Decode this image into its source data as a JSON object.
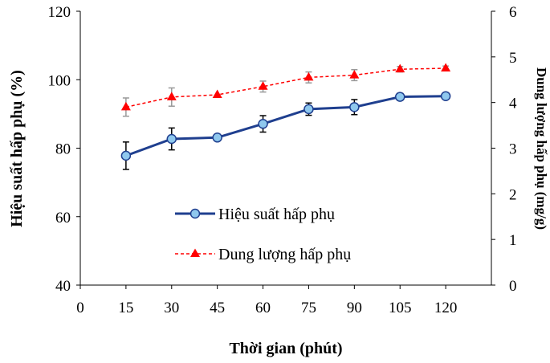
{
  "chart_data": {
    "type": "line",
    "xlabel": "Thời gian (phút)",
    "ylabel_left": "Hiệu suất hấp phụ (%)",
    "ylabel_right": "Dung lượng hấp phụ (mg/g)",
    "xlim": [
      0,
      135
    ],
    "x_ticks": [
      0,
      15,
      30,
      45,
      60,
      75,
      90,
      105,
      120
    ],
    "ylim_left": [
      40,
      120
    ],
    "y_ticks_left": [
      40,
      60,
      80,
      100,
      120
    ],
    "ylim_right": [
      0,
      6
    ],
    "y_ticks_right": [
      0,
      1,
      2,
      3,
      4,
      5,
      6
    ],
    "grid": false,
    "legend_position": "center-right",
    "x": [
      15,
      30,
      45,
      60,
      75,
      90,
      105,
      120
    ],
    "series": [
      {
        "name": "Hiệu suất hấp phụ",
        "axis": "left",
        "values": [
          77.8,
          82.7,
          83.1,
          87.1,
          91.4,
          92.0,
          95.0,
          95.2
        ],
        "errors": [
          4.0,
          3.2,
          0.0,
          2.4,
          1.8,
          2.2,
          1.0,
          0.0
        ],
        "color": "#1f3f8f",
        "marker_fill": "#8fc8ee",
        "style": "solid",
        "marker": "circle"
      },
      {
        "name": "Dung lượng hấp phụ",
        "axis": "right",
        "values": [
          3.9,
          4.12,
          4.17,
          4.35,
          4.55,
          4.6,
          4.73,
          4.75
        ],
        "errors": [
          0.2,
          0.2,
          0.0,
          0.12,
          0.12,
          0.12,
          0.06,
          0.05
        ],
        "color": "#ff0000",
        "error_color": "#999999",
        "style": "dashed",
        "marker": "triangle"
      }
    ]
  }
}
